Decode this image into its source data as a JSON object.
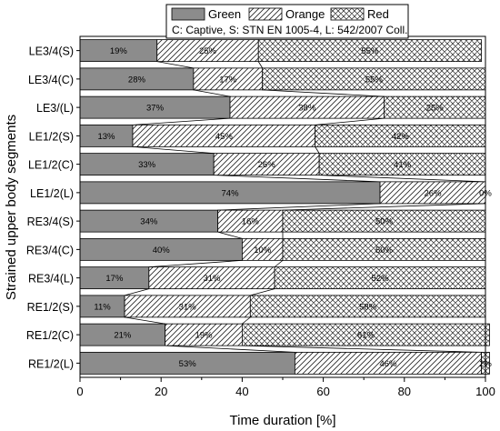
{
  "chart_data": {
    "type": "bar",
    "orientation": "horizontal",
    "stacked": true,
    "xlabel": "Time duration [%]",
    "ylabel": "Strained upper body segments",
    "xlim": [
      0,
      100
    ],
    "xticks": [
      0,
      20,
      40,
      60,
      80,
      100
    ],
    "grid": false,
    "legend": {
      "placement": "top-right",
      "note": "C: Captive, S: STN EN 1005-4, L: 542/2007 Coll."
    },
    "categories": [
      "LE3/4(S)",
      "LE3/4(C)",
      "LE3/(L)",
      "LE1/2(S)",
      "LE1/2(C)",
      "LE1/2(L)",
      "RE3/4(S)",
      "RE3/4(C)",
      "RE3/4(L)",
      "RE1/2(S)",
      "RE1/2(C)",
      "RE1/2(L)"
    ],
    "series": [
      {
        "name": "Green",
        "color": "#8c8c8c",
        "pattern": "solid",
        "values": [
          19,
          28,
          37,
          13,
          33,
          74,
          34,
          40,
          17,
          11,
          21,
          53
        ],
        "labels": [
          "19%",
          "28%",
          "37%",
          "13%",
          "33%",
          "74%",
          "34%",
          "40%",
          "17%",
          "11%",
          "21%",
          "53%"
        ]
      },
      {
        "name": "Orange",
        "color": "#ffffff",
        "pattern": "diagonal",
        "values": [
          25,
          17,
          38,
          45,
          26,
          26,
          16,
          10,
          31,
          31,
          19,
          46
        ],
        "labels": [
          "25%",
          "17%",
          "38%",
          "45%",
          "26%",
          "26%",
          "16%",
          "10%",
          "31%",
          "31%",
          "19%",
          "46%"
        ]
      },
      {
        "name": "Red",
        "color": "#ffffff",
        "pattern": "crosshatch",
        "values": [
          55,
          55,
          25,
          42,
          41,
          0,
          50,
          50,
          52,
          58,
          61,
          2
        ],
        "labels": [
          "55%",
          "55%",
          "25%",
          "42%",
          "41%",
          "0%",
          "50%",
          "50%",
          "52%",
          "58%",
          "61%",
          "2%"
        ]
      }
    ]
  }
}
